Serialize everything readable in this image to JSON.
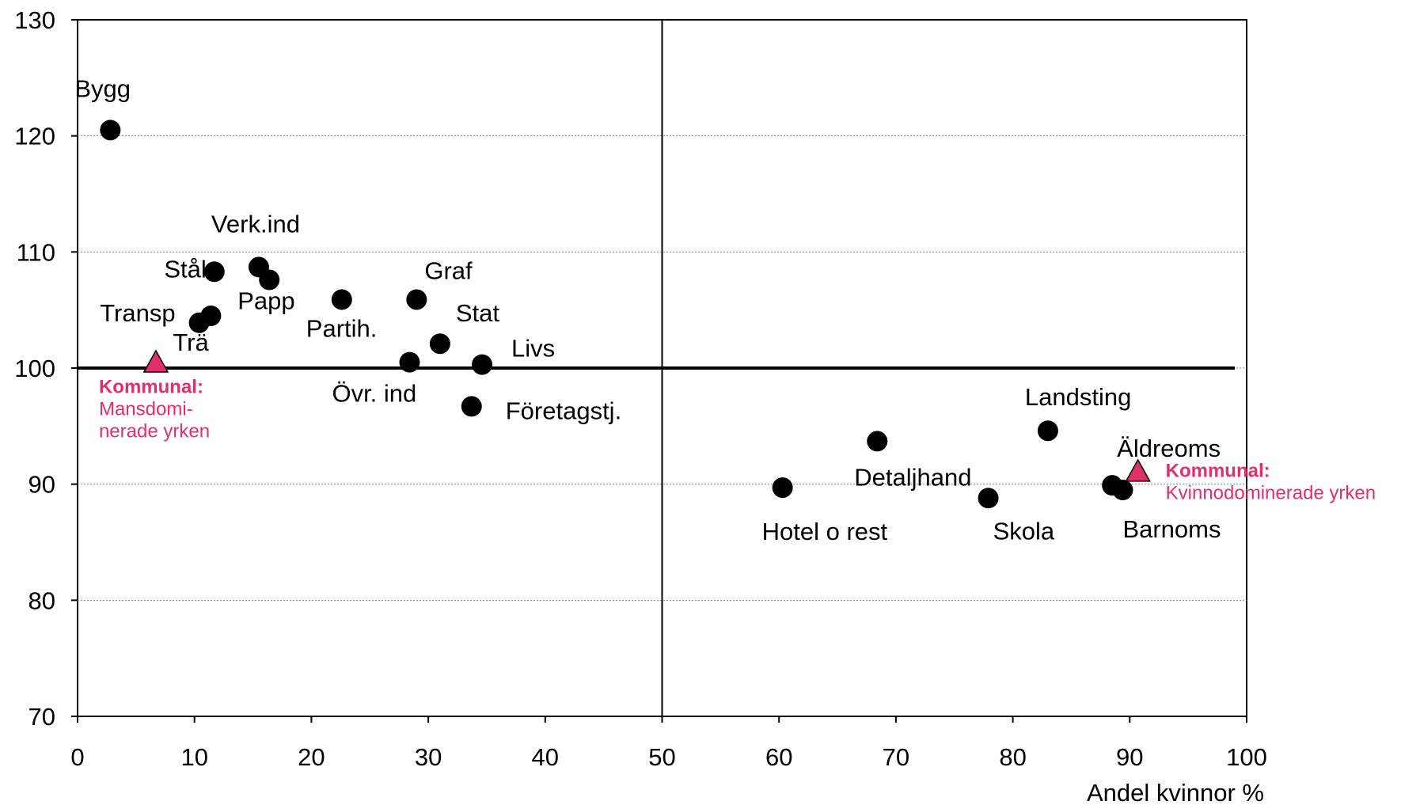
{
  "chart_data": {
    "type": "scatter",
    "xlabel": "Andel kvinnor %",
    "ylabel": "",
    "xlim": [
      0,
      100
    ],
    "ylim": [
      70,
      130
    ],
    "x_ticks": [
      0,
      10,
      20,
      30,
      40,
      50,
      60,
      70,
      80,
      90,
      100
    ],
    "y_ticks": [
      70,
      80,
      90,
      100,
      110,
      120,
      130
    ],
    "grid": "horizontal dotted",
    "reference_lines": [
      {
        "orientation": "horizontal",
        "value": 100
      },
      {
        "orientation": "vertical",
        "value": 50
      }
    ],
    "points": [
      {
        "label": "Bygg",
        "x": 2.8,
        "y": 120.5
      },
      {
        "label": "Stål",
        "x": 11.7,
        "y": 108.3
      },
      {
        "label": "Verk.ind",
        "x": 15.5,
        "y": 108.7
      },
      {
        "label": "Papp",
        "x": 16.4,
        "y": 107.6
      },
      {
        "label": "Transp",
        "x": 10.4,
        "y": 103.9
      },
      {
        "label": "Trä",
        "x": 11.4,
        "y": 104.5
      },
      {
        "label": "Partih.",
        "x": 22.6,
        "y": 105.9
      },
      {
        "label": "Graf",
        "x": 29.0,
        "y": 105.9
      },
      {
        "label": "Stat",
        "x": 31.0,
        "y": 102.1
      },
      {
        "label": "Övr. ind",
        "x": 28.4,
        "y": 100.5
      },
      {
        "label": "Livs",
        "x": 34.6,
        "y": 100.3
      },
      {
        "label": "Företagstj.",
        "x": 33.7,
        "y": 96.7
      },
      {
        "label": "Hotel o rest",
        "x": 60.3,
        "y": 89.7
      },
      {
        "label": "Detaljhand",
        "x": 68.4,
        "y": 93.7
      },
      {
        "label": "Skola",
        "x": 77.9,
        "y": 88.8
      },
      {
        "label": "Landsting",
        "x": 83.0,
        "y": 94.6
      },
      {
        "label": "Äldreoms",
        "x": 88.5,
        "y": 89.9
      },
      {
        "label": "Barnoms",
        "x": 89.4,
        "y": 89.5
      }
    ],
    "special_points": [
      {
        "title": "Kommunal:",
        "subtitle_lines": [
          "Mansdomi-",
          "nerade yrken"
        ],
        "x": 6.7,
        "y": 100.3,
        "marker": "triangle",
        "color": "#e0306a"
      },
      {
        "title": "Kommunal:",
        "subtitle_lines": [
          "Kvinnodominerade yrken"
        ],
        "x": 90.7,
        "y": 90.9,
        "marker": "triangle",
        "color": "#e0306a"
      }
    ]
  }
}
